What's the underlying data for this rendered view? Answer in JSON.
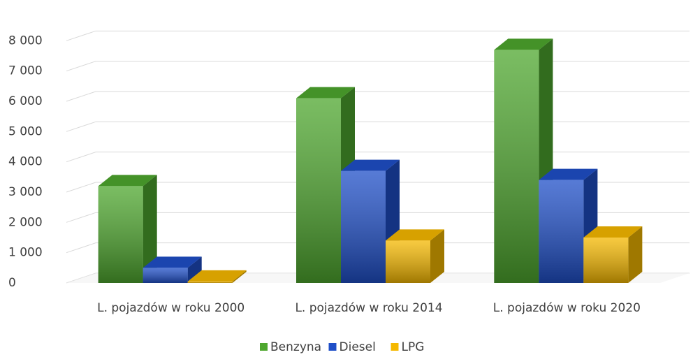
{
  "chart_data": {
    "type": "bar",
    "categories": [
      "L. pojazdów w roku 2000",
      "L. pojazdów w roku 2014",
      "L. pojazdów w roku 2020"
    ],
    "series": [
      {
        "name": "Benzyna",
        "color": "#4ea72e",
        "values": [
          3200,
          6100,
          7700
        ]
      },
      {
        "name": "Diesel",
        "color": "#1f4fc8",
        "values": [
          500,
          3700,
          3400
        ]
      },
      {
        "name": "LPG",
        "color": "#f5b800",
        "values": [
          50,
          1400,
          1500
        ]
      }
    ],
    "ylim": [
      0,
      9000
    ],
    "yticks": [
      0,
      {
        "value": 1000,
        "label": "1 000"
      },
      {
        "value": 2000,
        "label": "2 000"
      },
      {
        "value": 3000,
        "label": "3 000"
      },
      {
        "value": 4000,
        "label": "4 000"
      },
      {
        "value": 5000,
        "label": "5 000"
      },
      {
        "value": 6000,
        "label": "6 000"
      },
      {
        "value": 7000,
        "label": "7 000"
      },
      {
        "value": 8000,
        "label": "8 000"
      }
    ],
    "grid": true,
    "legend": "bottom"
  }
}
